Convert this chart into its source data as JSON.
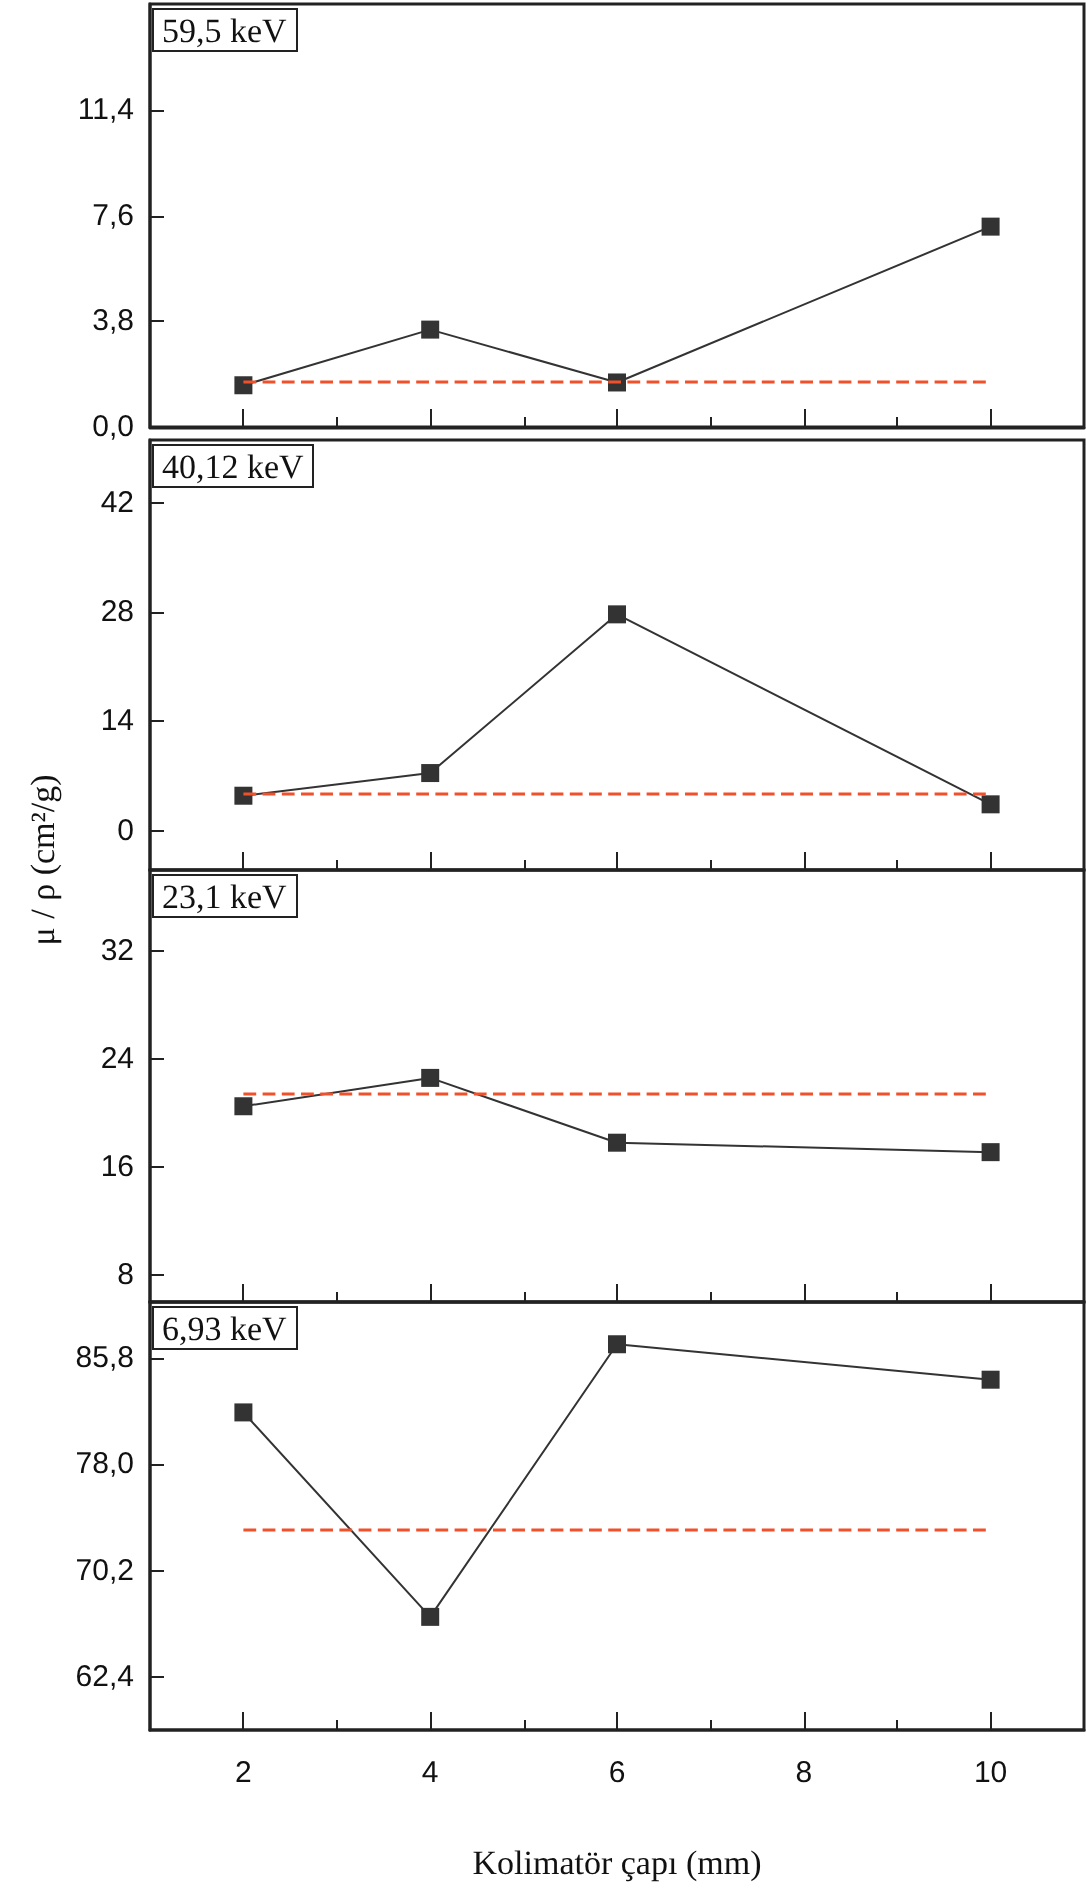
{
  "chart_data": [
    {
      "type": "line",
      "title": "59,5 keV",
      "x": [
        2,
        4,
        6,
        10
      ],
      "xlim": [
        1,
        11
      ],
      "xticks": [
        2,
        4,
        6,
        8,
        10
      ],
      "ylim": [
        0,
        15.2
      ],
      "yticks": [
        {
          "value": 0,
          "label": "0,0"
        },
        {
          "value": 3.8,
          "label": "3,8"
        },
        {
          "value": 7.6,
          "label": "7,6"
        },
        {
          "value": 11.4,
          "label": "11,4"
        }
      ],
      "tick_labels": "y",
      "marker": "square",
      "line_style": "solid",
      "series": [
        {
          "color": "#333333",
          "values": [
            1.5,
            3.5,
            1.6,
            7.2
          ]
        }
      ],
      "ref_lines": [
        {
          "axis": "y",
          "value": 1.6,
          "color": "#f0502a",
          "line_style": "dashed"
        }
      ]
    },
    {
      "type": "line",
      "title": "40,12 keV",
      "ylabel": "μ / ρ (cm²/g)",
      "x": [
        2,
        4,
        6,
        10
      ],
      "xlim": [
        1,
        11
      ],
      "xticks": [
        2,
        4,
        6,
        8,
        10
      ],
      "ylim": [
        -5,
        50
      ],
      "yticks": [
        0,
        14,
        28,
        42
      ],
      "tick_labels": "y",
      "marker": "square",
      "line_style": "solid",
      "series": [
        {
          "color": "#333333",
          "values": [
            4.5,
            7.4,
            27.7,
            3.4
          ]
        }
      ],
      "ref_lines": [
        {
          "axis": "y",
          "value": 4.9,
          "color": "#f0502a",
          "line_style": "dashed"
        }
      ]
    },
    {
      "type": "line",
      "title": "23,1 keV",
      "x": [
        2,
        4,
        6,
        10
      ],
      "xlim": [
        1,
        11
      ],
      "xticks": [
        2,
        4,
        6,
        8,
        10
      ],
      "ylim": [
        6,
        38
      ],
      "yticks": [
        8,
        16,
        24,
        32
      ],
      "tick_labels": "y",
      "marker": "square",
      "line_style": "solid",
      "series": [
        {
          "color": "#333333",
          "values": [
            20.5,
            22.6,
            17.8,
            17.1
          ]
        }
      ],
      "ref_lines": [
        {
          "axis": "y",
          "value": 21.5,
          "color": "#f0502a",
          "line_style": "dashed"
        }
      ]
    },
    {
      "type": "line",
      "title": "6,93 keV",
      "xlabel": "Kolimatör çapı (mm)",
      "x": [
        2,
        4,
        6,
        10
      ],
      "xlim": [
        1,
        11
      ],
      "xticks": [
        2,
        4,
        6,
        8,
        10
      ],
      "ylim": [
        58.5,
        89.9
      ],
      "yticks": [
        {
          "value": 62.4,
          "label": "62,4"
        },
        {
          "value": 70.2,
          "label": "70,2"
        },
        {
          "value": 78,
          "label": "78,0"
        },
        {
          "value": 85.8,
          "label": "85,8"
        }
      ],
      "marker": "square",
      "line_style": "solid",
      "series": [
        {
          "color": "#333333",
          "values": [
            81.8,
            66.8,
            86.8,
            84.2
          ]
        }
      ],
      "ref_lines": [
        {
          "axis": "y",
          "value": 73.2,
          "color": "#f0502a",
          "line_style": "dashed"
        }
      ]
    }
  ]
}
